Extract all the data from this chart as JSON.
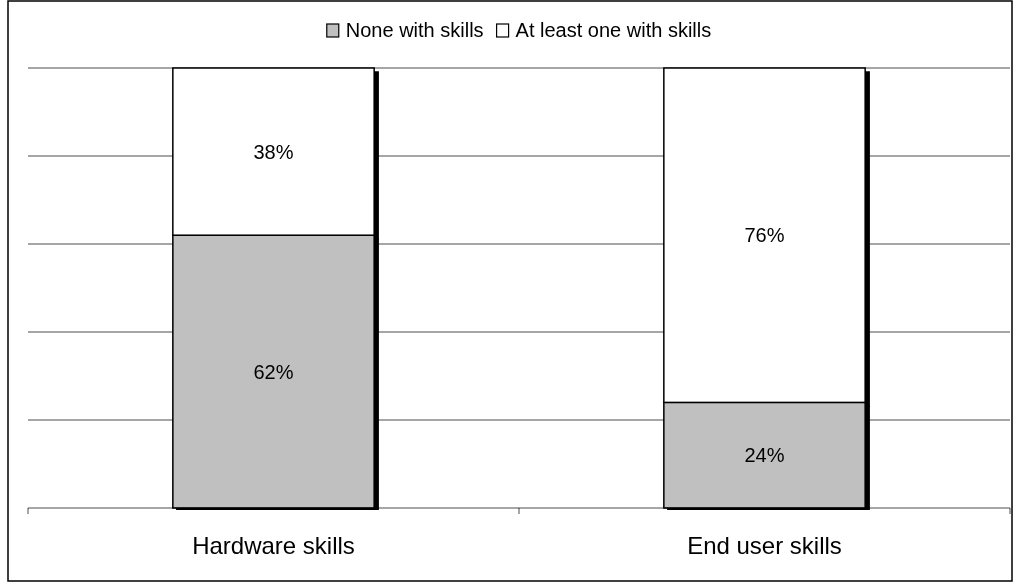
{
  "chart_data": {
    "type": "bar",
    "categories": [
      "Hardware skills",
      "End user skills"
    ],
    "stacked": true,
    "series": [
      {
        "name": "None with skills",
        "color": "#c0c0c0",
        "values": [
          62,
          24
        ],
        "value_labels": [
          "62%",
          "24%"
        ]
      },
      {
        "name": "At least one with skills",
        "color": "#ffffff",
        "values": [
          38,
          76
        ],
        "value_labels": [
          "38%",
          "76%"
        ]
      }
    ],
    "ylim": [
      0,
      100
    ],
    "yticks": [
      {
        "value": 0,
        "label": null
      },
      {
        "value": 20,
        "label": null
      },
      {
        "value": 40,
        "label": null
      },
      {
        "value": 60,
        "label": null
      },
      {
        "value": 80,
        "label": null
      },
      {
        "value": 100,
        "label": null
      }
    ],
    "grid": "y",
    "tick_labels": "x",
    "legend": "top"
  }
}
